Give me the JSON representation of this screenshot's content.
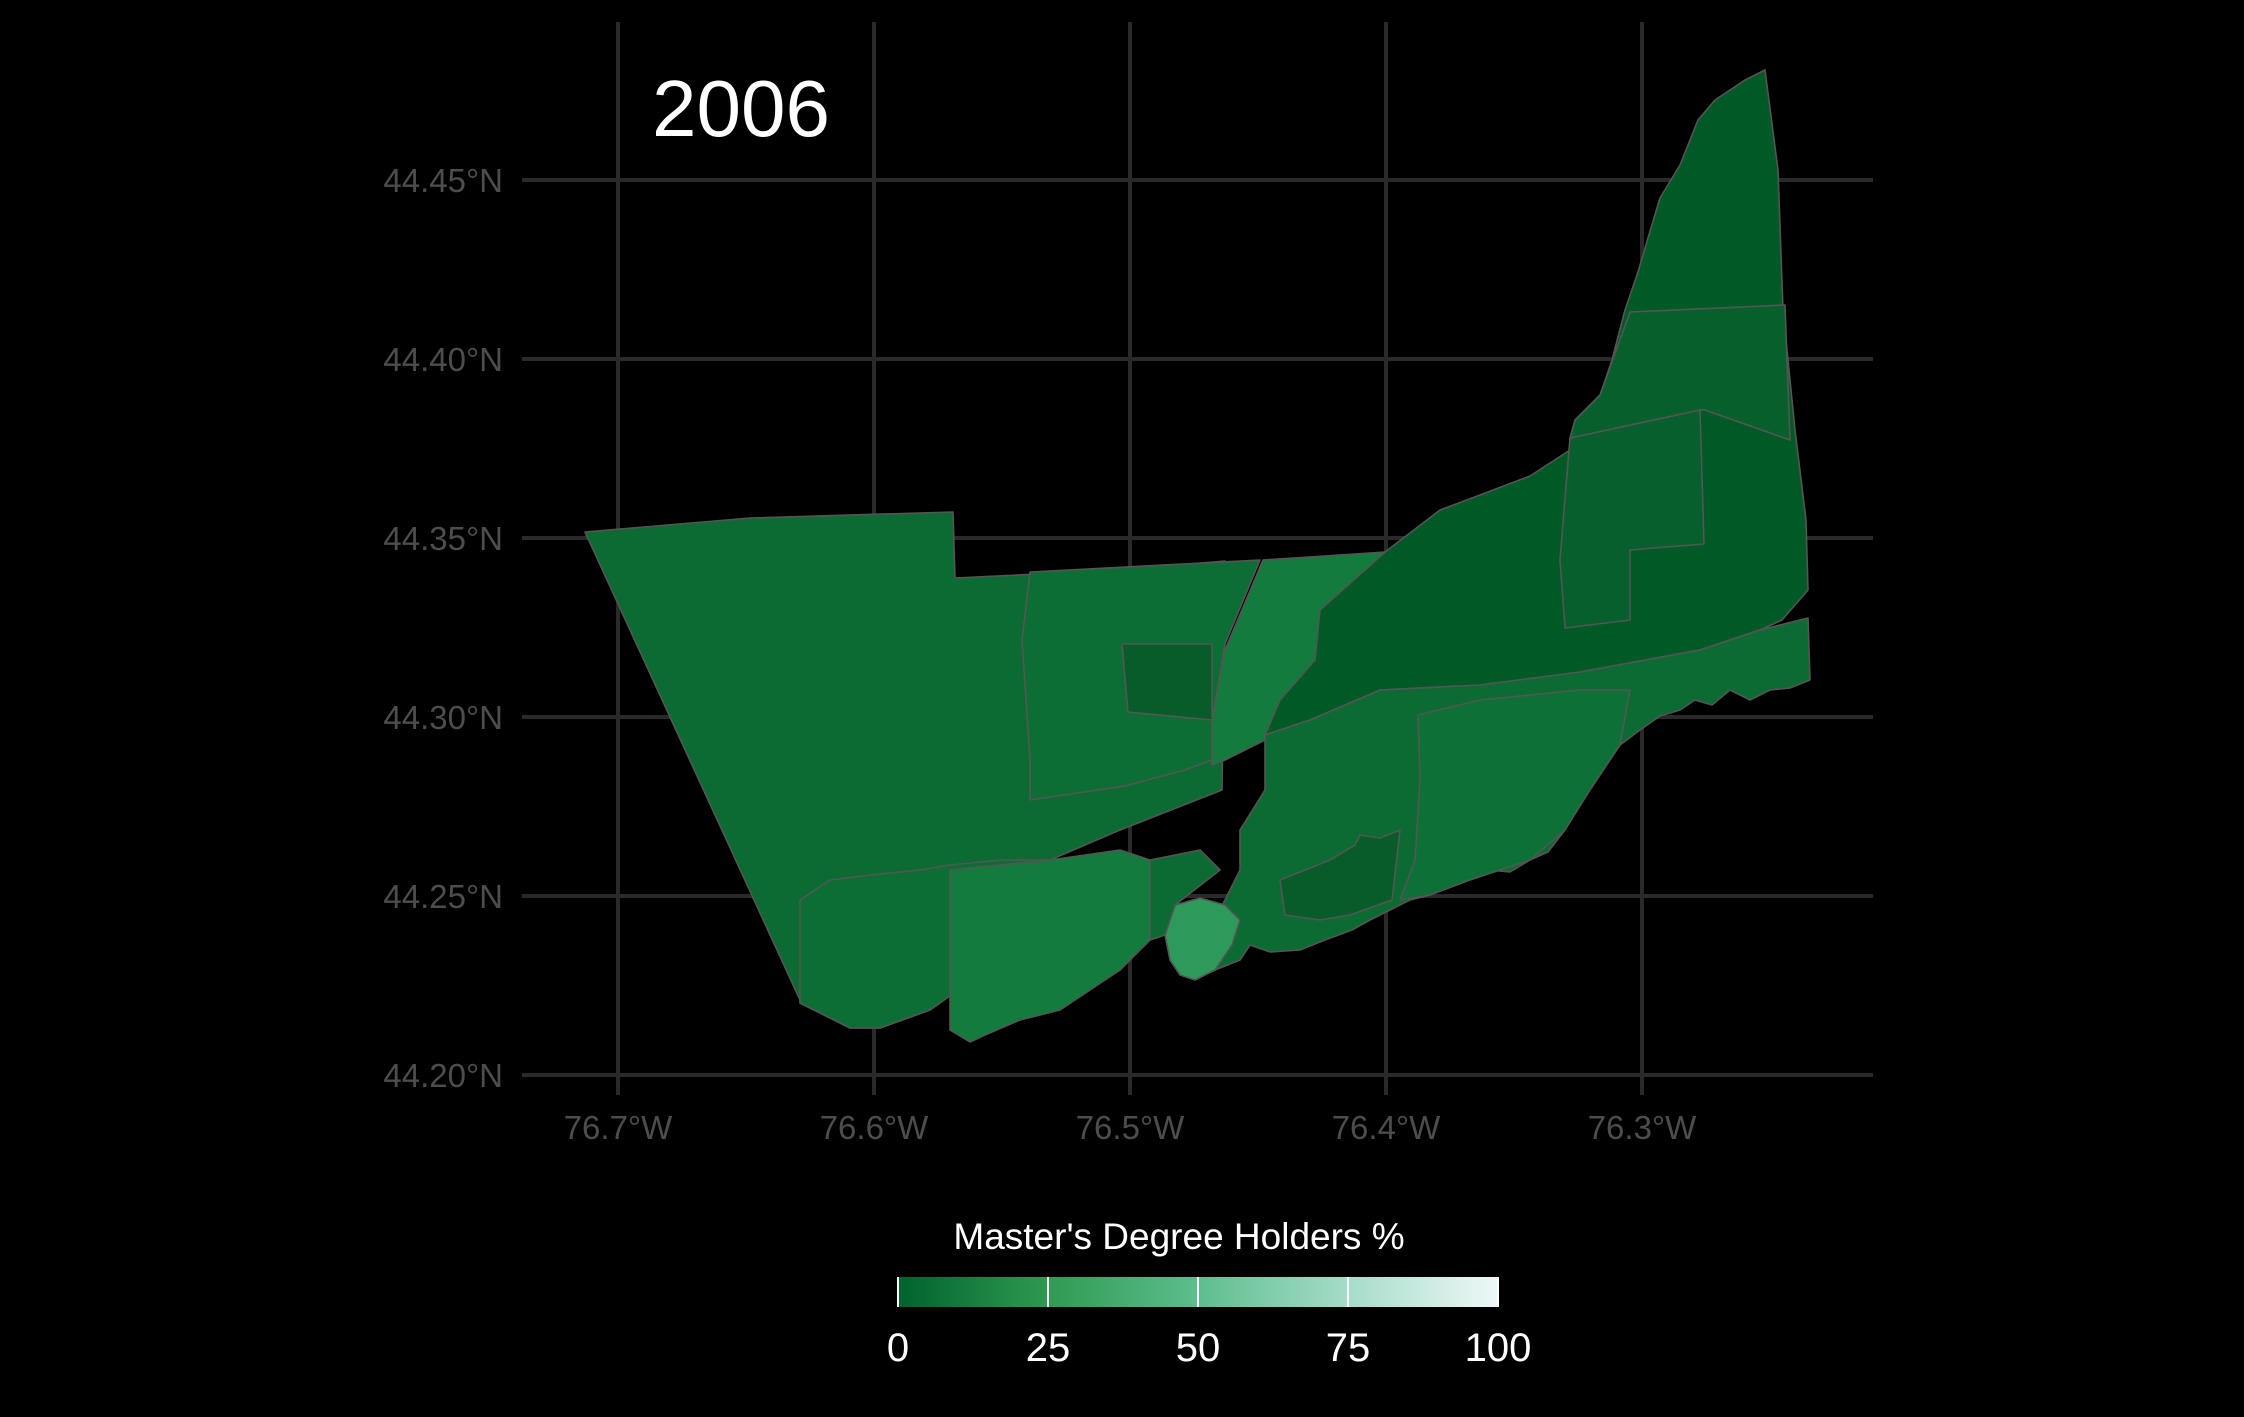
{
  "title": "2006",
  "map": {
    "lon_ticks": [
      "76.7°W",
      "76.6°W",
      "76.5°W",
      "76.4°W",
      "76.3°W"
    ],
    "lat_ticks": [
      "44.45°N",
      "44.40°N",
      "44.35°N",
      "44.30°N",
      "44.25°N",
      "44.20°N"
    ],
    "colors": {
      "background": "#000000",
      "grid": "#2a2a2a",
      "region_border": "#555555",
      "fill_dark": "#005a26",
      "fill_mid": "#0b6b32",
      "fill_light": "#137c3c",
      "fill_highlight": "#2e9a5a"
    }
  },
  "legend": {
    "title": "Master's Degree Holders %",
    "ticks": [
      "0",
      "25",
      "50",
      "75",
      "100"
    ],
    "min": 0,
    "max": 100,
    "gradient_colors": [
      "#00622c",
      "#2e9a52",
      "#5dbe8e",
      "#a6dcc9",
      "#eef8f8"
    ]
  }
}
